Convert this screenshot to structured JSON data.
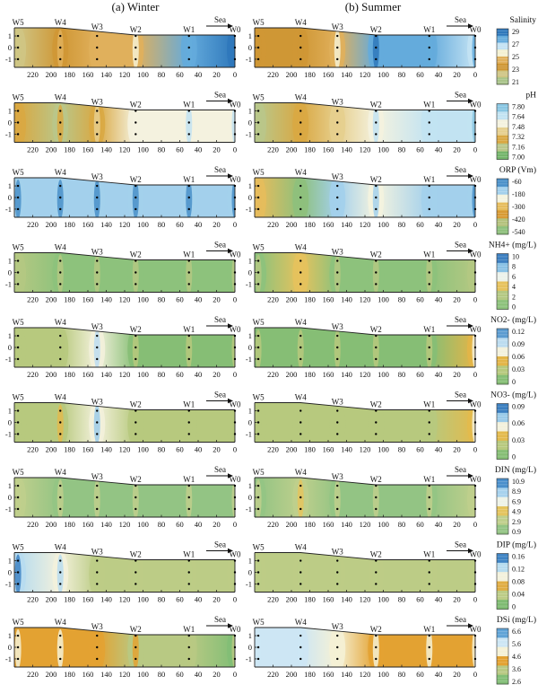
{
  "headers": {
    "winter": "(a) Winter",
    "summer": "(b) Summer"
  },
  "sea_label": "Sea",
  "sites": [
    {
      "name": "W5",
      "x": 236
    },
    {
      "name": "W4",
      "x": 190
    },
    {
      "name": "W3",
      "x": 150
    },
    {
      "name": "W2",
      "x": 108
    },
    {
      "name": "W1",
      "x": 50
    },
    {
      "name": "W0",
      "x": 0
    }
  ],
  "x_ticks": [
    "220",
    "200",
    "180",
    "160",
    "140",
    "120",
    "100",
    "80",
    "60",
    "40",
    "20",
    "0"
  ],
  "x_tick_values": [
    220,
    200,
    180,
    160,
    140,
    120,
    100,
    80,
    60,
    40,
    20,
    0
  ],
  "y_ticks": [
    "1",
    "0",
    "-1"
  ],
  "y_tick_values": [
    1,
    0,
    -1
  ],
  "chart_data": {
    "type": "heatmap",
    "xlim": [
      240,
      0
    ],
    "ylim": [
      -1.7,
      1.7
    ],
    "seasons": [
      "Winter",
      "Summer"
    ],
    "sample_depths": [
      1,
      0,
      -1
    ],
    "parameters": [
      {
        "name": "Salinity",
        "ticks": [
          "29",
          "27",
          "25",
          "23",
          "21"
        ],
        "range": [
          21,
          29
        ],
        "colors": [
          "#2f78bb",
          "#64abdc",
          "#c3e2f3",
          "#f4f1d2",
          "#e0b05c",
          "#cf9735",
          "#cfc584",
          "#a9c489"
        ],
        "winter": [
          22,
          23.5,
          24,
          25,
          27.5,
          28.5
        ],
        "summer": [
          23,
          23.2,
          24.5,
          28,
          27.5,
          27
        ]
      },
      {
        "name": "pH",
        "ticks": [
          "7.80",
          "7.64",
          "7.48",
          "7.32",
          "7.16",
          "7.00"
        ],
        "range": [
          7.0,
          7.8
        ],
        "colors": [
          "#8ac7e3",
          "#c2e3f2",
          "#f4f2df",
          "#e6cf8e",
          "#d9a843",
          "#b9c78a",
          "#74b56b"
        ],
        "winter": [
          7.2,
          7.15,
          7.3,
          7.5,
          7.55,
          7.6
        ],
        "summer": [
          7.1,
          7.2,
          7.35,
          7.6,
          7.65,
          7.7
        ]
      },
      {
        "name": "ORP (Vm)",
        "ticks": [
          "-60",
          "-180",
          "-300",
          "-420",
          "-540"
        ],
        "range": [
          -540,
          -60
        ],
        "colors": [
          "#4a90c9",
          "#a3d0ec",
          "#f4f3df",
          "#e6bc5c",
          "#d89a34",
          "#b4c27d",
          "#8ec07c"
        ],
        "winter": [
          -100,
          -110,
          -120,
          -120,
          -110,
          -110
        ],
        "summer": [
          -300,
          -540,
          -150,
          -180,
          -160,
          -120
        ]
      },
      {
        "name": "NH4+ (mg/L)",
        "ticks": [
          "10",
          "8",
          "6",
          "4",
          "2",
          "0"
        ],
        "range": [
          0,
          10
        ],
        "colors": [
          "#3d7fc0",
          "#8bc2e5",
          "#ecf2ea",
          "#e6c25d",
          "#b4c882",
          "#8dc27c"
        ],
        "winter": [
          1.5,
          1.0,
          0.5,
          0.3,
          0.3,
          0.3
        ],
        "summer": [
          0.5,
          3.5,
          0.8,
          0.4,
          0.5,
          1.5
        ]
      },
      {
        "name": "NO2- (mg/L)",
        "ticks": [
          "0.12",
          "0.09",
          "0.06",
          "0.03",
          "0"
        ],
        "range": [
          0,
          0.12
        ],
        "colors": [
          "#5b9bd0",
          "#bcdcf0",
          "#f3f1dc",
          "#e3b548",
          "#b7c97e",
          "#86be75"
        ],
        "winter": [
          0.02,
          0.02,
          0.08,
          0.01,
          0.01,
          0.01
        ],
        "summer": [
          0.01,
          0.01,
          0.01,
          0.01,
          0.01,
          0.06
        ]
      },
      {
        "name": "NO3- (mg/L)",
        "ticks": [
          "0.09",
          "0.06",
          "0.03",
          "0"
        ],
        "range": [
          0,
          0.09
        ],
        "colors": [
          "#3c7fc0",
          "#9bcbe9",
          "#f3f1dc",
          "#e3ba4d",
          "#b7c97e",
          "#86be75"
        ],
        "winter": [
          0.01,
          0.02,
          0.06,
          0.01,
          0.01,
          0.01
        ],
        "summer": [
          0.01,
          0.01,
          0.01,
          0.01,
          0.01,
          0.04
        ]
      },
      {
        "name": "DIN (mg/L)",
        "ticks": [
          "10.9",
          "8.9",
          "6.9",
          "4.9",
          "2.9",
          "0.9"
        ],
        "range": [
          0.9,
          10.9
        ],
        "colors": [
          "#4a8fcb",
          "#a7d2ee",
          "#eef3e7",
          "#e4c45e",
          "#bfcf8c",
          "#93c484"
        ],
        "winter": [
          2.5,
          1.5,
          1.2,
          1.2,
          1.2,
          1.5
        ],
        "summer": [
          1.5,
          3.5,
          1.5,
          1.2,
          1.2,
          2.5
        ]
      },
      {
        "name": "DIP (mg/L)",
        "ticks": [
          "0.16",
          "0.12",
          "0.08",
          "0.04",
          "0"
        ],
        "range": [
          0,
          0.16
        ],
        "colors": [
          "#3f84c4",
          "#b7dcef",
          "#f3f1dc",
          "#e0ad43",
          "#bccc86",
          "#7fbb72"
        ],
        "winter": [
          0.14,
          0.1,
          0.03,
          0.02,
          0.02,
          0.02
        ],
        "summer": [
          0.03,
          0.03,
          0.03,
          0.03,
          0.03,
          0.03
        ]
      },
      {
        "name": "DSi (mg/L)",
        "ticks": [
          "6.6",
          "5.6",
          "4.6",
          "3.6",
          "2.6"
        ],
        "range": [
          2.6,
          6.6
        ],
        "colors": [
          "#5fa3d6",
          "#cde6f4",
          "#f5f1d5",
          "#e3a232",
          "#b8c983",
          "#82be76"
        ],
        "winter": [
          4.5,
          4.6,
          4.2,
          3.8,
          3.2,
          3.0
        ],
        "summer": [
          5.5,
          5.8,
          4.8,
          4.3,
          4.3,
          4.6
        ]
      }
    ]
  }
}
